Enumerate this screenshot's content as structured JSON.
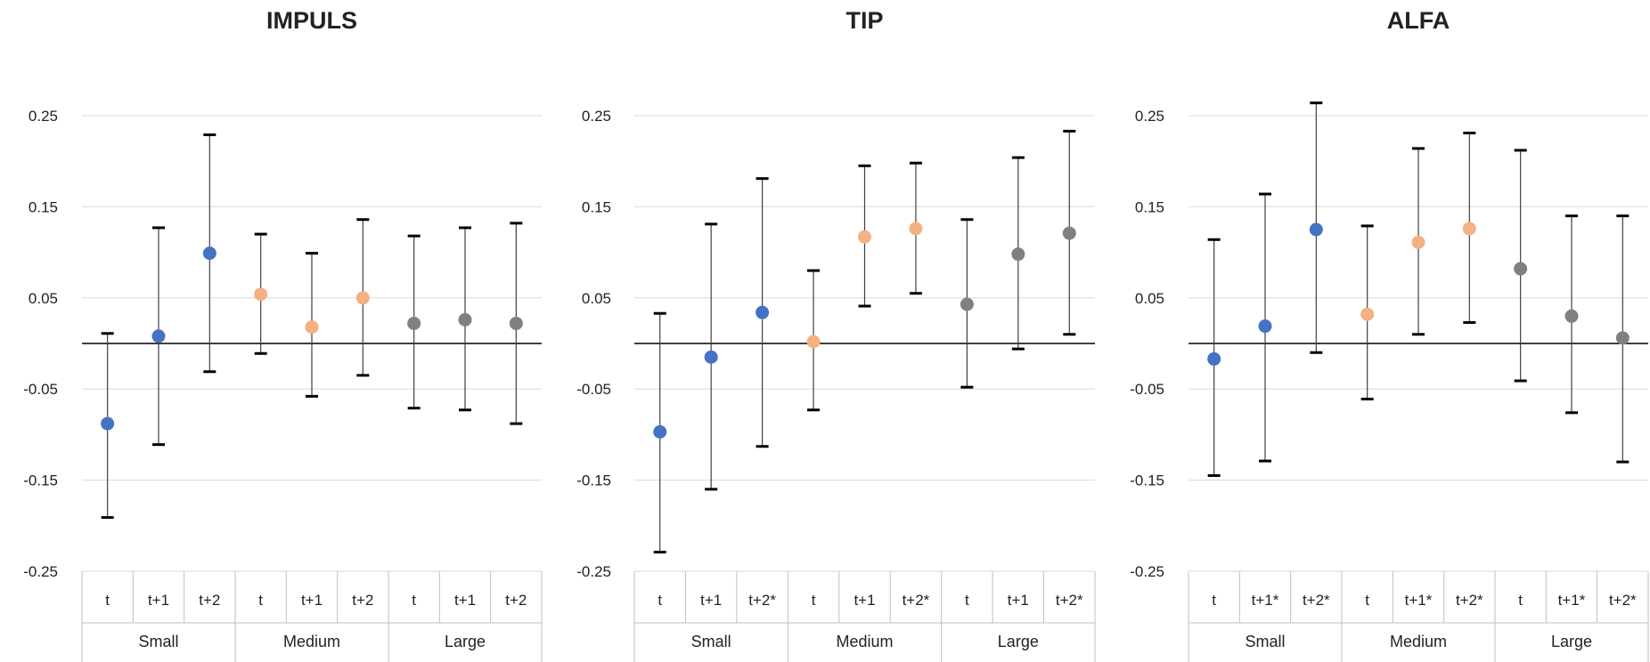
{
  "chart_data": [
    {
      "type": "scatter",
      "title": "IMPULS",
      "ylim": [
        -0.25,
        0.25
      ],
      "yticks": [
        "0.25",
        "0.15",
        "0.05",
        "-0.05",
        "-0.15",
        "-0.25"
      ],
      "grid": true,
      "groups": [
        {
          "name": "Small",
          "color": "#4472C4",
          "points": [
            {
              "label": "t",
              "value": -0.088,
              "lower": -0.191,
              "upper": 0.011
            },
            {
              "label": "t+1",
              "value": 0.008,
              "lower": -0.111,
              "upper": 0.127
            },
            {
              "label": "t+2",
              "value": 0.099,
              "lower": -0.031,
              "upper": 0.229
            }
          ]
        },
        {
          "name": "Medium",
          "color": "#F4B183",
          "points": [
            {
              "label": "t",
              "value": 0.054,
              "lower": -0.011,
              "upper": 0.12
            },
            {
              "label": "t+1",
              "value": 0.018,
              "lower": -0.058,
              "upper": 0.099
            },
            {
              "label": "t+2",
              "value": 0.05,
              "lower": -0.035,
              "upper": 0.136
            }
          ]
        },
        {
          "name": "Large",
          "color": "#808080",
          "points": [
            {
              "label": "t",
              "value": 0.022,
              "lower": -0.071,
              "upper": 0.118
            },
            {
              "label": "t+1",
              "value": 0.026,
              "lower": -0.073,
              "upper": 0.127
            },
            {
              "label": "t+2",
              "value": 0.022,
              "lower": -0.088,
              "upper": 0.132
            }
          ]
        }
      ]
    },
    {
      "type": "scatter",
      "title": "TIP",
      "ylim": [
        -0.25,
        0.25
      ],
      "yticks": [
        "0.25",
        "0.15",
        "0.05",
        "-0.05",
        "-0.15",
        "-0.25"
      ],
      "grid": true,
      "groups": [
        {
          "name": "Small",
          "color": "#4472C4",
          "points": [
            {
              "label": "t",
              "value": -0.097,
              "lower": -0.229,
              "upper": 0.033
            },
            {
              "label": "t+1",
              "value": -0.015,
              "lower": -0.16,
              "upper": 0.131
            },
            {
              "label": "t+2*",
              "value": 0.034,
              "lower": -0.113,
              "upper": 0.181
            }
          ]
        },
        {
          "name": "Medium",
          "color": "#F4B183",
          "points": [
            {
              "label": "t",
              "value": 0.002,
              "lower": -0.073,
              "upper": 0.08
            },
            {
              "label": "t+1",
              "value": 0.117,
              "lower": 0.041,
              "upper": 0.195
            },
            {
              "label": "t+2*",
              "value": 0.126,
              "lower": 0.055,
              "upper": 0.198
            }
          ]
        },
        {
          "name": "Large",
          "color": "#808080",
          "points": [
            {
              "label": "t",
              "value": 0.043,
              "lower": -0.048,
              "upper": 0.136
            },
            {
              "label": "t+1",
              "value": 0.098,
              "lower": -0.006,
              "upper": 0.204
            },
            {
              "label": "t+2*",
              "value": 0.121,
              "lower": 0.01,
              "upper": 0.233
            }
          ]
        }
      ]
    },
    {
      "type": "scatter",
      "title": "ALFA",
      "ylim": [
        -0.25,
        0.25
      ],
      "yticks": [
        "0.25",
        "0.15",
        "0.05",
        "-0.05",
        "-0.15",
        "-0.25"
      ],
      "grid": true,
      "groups": [
        {
          "name": "Small",
          "color": "#4472C4",
          "points": [
            {
              "label": "t",
              "value": -0.017,
              "lower": -0.145,
              "upper": 0.114
            },
            {
              "label": "t+1*",
              "value": 0.019,
              "lower": -0.129,
              "upper": 0.164
            },
            {
              "label": "t+2*",
              "value": 0.125,
              "lower": -0.01,
              "upper": 0.264
            }
          ]
        },
        {
          "name": "Medium",
          "color": "#F4B183",
          "points": [
            {
              "label": "t",
              "value": 0.032,
              "lower": -0.061,
              "upper": 0.129
            },
            {
              "label": "t+1*",
              "value": 0.111,
              "lower": 0.01,
              "upper": 0.214
            },
            {
              "label": "t+2*",
              "value": 0.126,
              "lower": 0.023,
              "upper": 0.231
            }
          ]
        },
        {
          "name": "Large",
          "color": "#808080",
          "points": [
            {
              "label": "t",
              "value": 0.082,
              "lower": -0.041,
              "upper": 0.212
            },
            {
              "label": "t+1*",
              "value": 0.03,
              "lower": -0.076,
              "upper": 0.14
            },
            {
              "label": "t+2*",
              "value": 0.006,
              "lower": -0.13,
              "upper": 0.14
            }
          ]
        }
      ]
    }
  ]
}
